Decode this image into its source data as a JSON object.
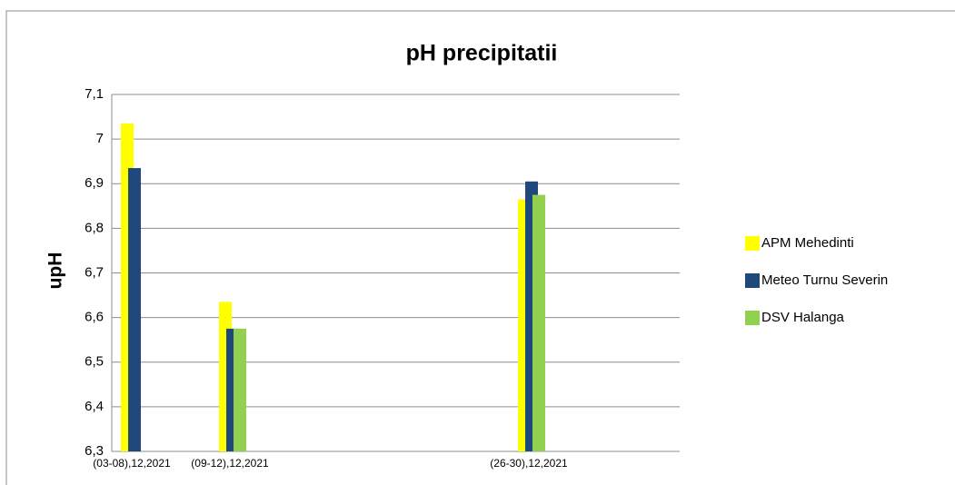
{
  "chart_data": {
    "type": "bar",
    "title": "pH precipitatii",
    "y_label": "upH",
    "categories": [
      "(03-08),12,2021",
      "(09-12),12,2021",
      "(26-30),12,2021"
    ],
    "series": [
      {
        "name": "APM Mehedinti",
        "color": "#ffff00",
        "values": [
          7.035,
          6.635,
          6.865
        ]
      },
      {
        "name": "Meteo Turnu Severin",
        "color": "#1f497d",
        "values": [
          6.935,
          6.575,
          6.905
        ]
      },
      {
        "name": "DSV Halanga",
        "color": "#92d050",
        "values": [
          null,
          6.575,
          6.875
        ]
      }
    ],
    "ylim": [
      6.3,
      7.1
    ],
    "yticks": [
      {
        "value": 6.3,
        "label": "6,3"
      },
      {
        "value": 6.4,
        "label": "6,4"
      },
      {
        "value": 6.5,
        "label": "6,5"
      },
      {
        "value": 6.6,
        "label": "6,6"
      },
      {
        "value": 6.7,
        "label": "6,7"
      },
      {
        "value": 6.8,
        "label": "6,8"
      },
      {
        "value": 6.9,
        "label": "6,9"
      },
      7,
      {
        "value": 7.1,
        "label": "7,1"
      }
    ],
    "grid": true,
    "legend": "right"
  }
}
